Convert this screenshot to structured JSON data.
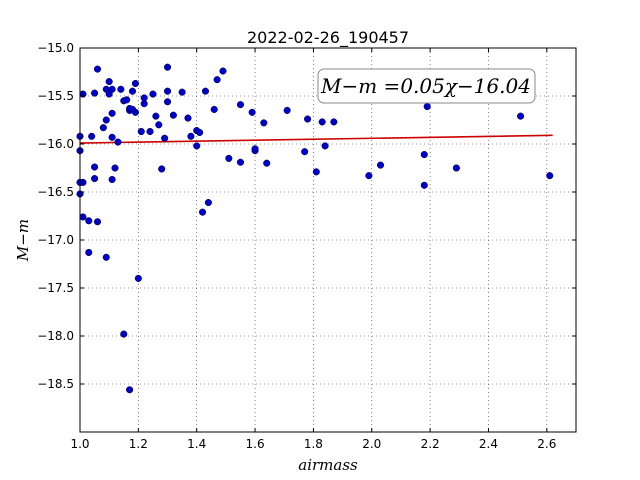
{
  "chart_data": {
    "type": "scatter",
    "title": "2022-02-26_190457",
    "xlabel": "airmass",
    "ylabel": "M−m",
    "xlim": [
      1.0,
      2.7
    ],
    "ylim": [
      -15.0,
      -19.0
    ],
    "y_inverted": true,
    "grid": true,
    "x_ticks": [
      "1.0",
      "1.2",
      "1.4",
      "1.6",
      "1.8",
      "2.0",
      "2.2",
      "2.4",
      "2.6"
    ],
    "x_tick_values": [
      1.0,
      1.2,
      1.4,
      1.6,
      1.8,
      2.0,
      2.2,
      2.4,
      2.6
    ],
    "y_ticks": [
      "−15.0",
      "−15.5",
      "−16.0",
      "−16.5",
      "−17.0",
      "−17.5",
      "−18.0",
      "−18.5"
    ],
    "y_tick_values": [
      -15.0,
      -15.5,
      -16.0,
      -16.5,
      -17.0,
      -17.5,
      -18.0,
      -18.5
    ],
    "annotation": "M−m =0.05χ−16.04",
    "colors": {
      "points": "#0000cc",
      "fit_line": "#cc0000"
    },
    "series": [
      {
        "values": [
          [
            1.0,
            -15.92
          ],
          [
            1.0,
            -16.07
          ],
          [
            1.0,
            -16.4
          ],
          [
            1.0,
            -16.52
          ],
          [
            1.01,
            -15.48
          ],
          [
            1.01,
            -16.4
          ],
          [
            1.01,
            -16.76
          ],
          [
            1.03,
            -16.8
          ],
          [
            1.03,
            -17.13
          ],
          [
            1.04,
            -15.92
          ],
          [
            1.05,
            -15.47
          ],
          [
            1.05,
            -16.24
          ],
          [
            1.05,
            -16.36
          ],
          [
            1.06,
            -15.22
          ],
          [
            1.06,
            -16.81
          ],
          [
            1.08,
            -15.83
          ],
          [
            1.09,
            -15.43
          ],
          [
            1.09,
            -15.75
          ],
          [
            1.09,
            -17.18
          ],
          [
            1.1,
            -15.35
          ],
          [
            1.1,
            -15.48
          ],
          [
            1.11,
            -15.43
          ],
          [
            1.11,
            -15.93
          ],
          [
            1.11,
            -16.37
          ],
          [
            1.11,
            -15.68
          ],
          [
            1.12,
            -16.25
          ],
          [
            1.13,
            -15.98
          ],
          [
            1.14,
            -15.43
          ],
          [
            1.15,
            -15.55
          ],
          [
            1.15,
            -17.98
          ],
          [
            1.16,
            -15.54
          ],
          [
            1.17,
            -15.65
          ],
          [
            1.17,
            -15.63
          ],
          [
            1.18,
            -15.64
          ],
          [
            1.17,
            -18.56
          ],
          [
            1.18,
            -15.45
          ],
          [
            1.19,
            -15.67
          ],
          [
            1.19,
            -15.37
          ],
          [
            1.2,
            -17.4
          ],
          [
            1.21,
            -15.87
          ],
          [
            1.22,
            -15.58
          ],
          [
            1.22,
            -15.52
          ],
          [
            1.24,
            -15.87
          ],
          [
            1.25,
            -15.48
          ],
          [
            1.26,
            -15.71
          ],
          [
            1.27,
            -15.8
          ],
          [
            1.28,
            -16.26
          ],
          [
            1.29,
            -15.94
          ],
          [
            1.3,
            -15.2
          ],
          [
            1.3,
            -15.45
          ],
          [
            1.3,
            -15.56
          ],
          [
            1.32,
            -15.7
          ],
          [
            1.35,
            -15.46
          ],
          [
            1.37,
            -15.73
          ],
          [
            1.38,
            -15.92
          ],
          [
            1.4,
            -16.02
          ],
          [
            1.4,
            -15.86
          ],
          [
            1.41,
            -15.88
          ],
          [
            1.42,
            -16.71
          ],
          [
            1.43,
            -15.45
          ],
          [
            1.44,
            -16.61
          ],
          [
            1.46,
            -15.64
          ],
          [
            1.47,
            -15.33
          ],
          [
            1.49,
            -15.24
          ],
          [
            1.51,
            -16.15
          ],
          [
            1.55,
            -15.59
          ],
          [
            1.55,
            -16.19
          ],
          [
            1.59,
            -15.67
          ],
          [
            1.6,
            -16.07
          ],
          [
            1.6,
            -16.05
          ],
          [
            1.63,
            -15.78
          ],
          [
            1.64,
            -16.2
          ],
          [
            1.71,
            -15.65
          ],
          [
            1.77,
            -16.08
          ],
          [
            1.78,
            -15.74
          ],
          [
            1.81,
            -16.29
          ],
          [
            1.83,
            -15.77
          ],
          [
            1.84,
            -16.02
          ],
          [
            1.87,
            -15.77
          ],
          [
            1.99,
            -16.33
          ],
          [
            2.03,
            -16.22
          ],
          [
            2.18,
            -16.11
          ],
          [
            2.18,
            -16.43
          ],
          [
            2.19,
            -15.61
          ],
          [
            2.29,
            -16.25
          ],
          [
            2.51,
            -15.71
          ],
          [
            2.61,
            -16.33
          ]
        ]
      }
    ],
    "fit_line": [
      [
        1.0,
        -15.99
      ],
      [
        2.62,
        -15.91
      ]
    ]
  }
}
